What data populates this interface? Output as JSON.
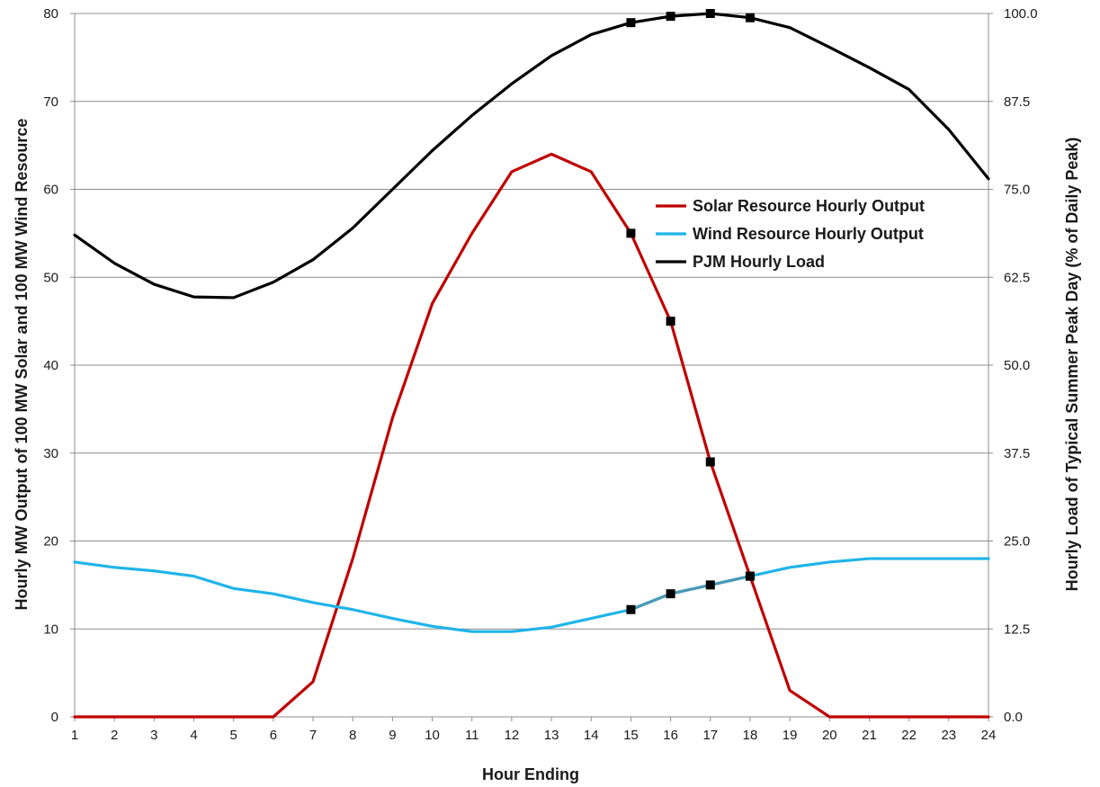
{
  "chart_data": {
    "type": "line",
    "title": "",
    "xlabel": "Hour Ending",
    "ylabel_left": "Hourly MW Output of 100 MW Solar and 100 MW Wind Resource",
    "ylabel_right": "Hourly Load of Typical Summer Peak Day (% of Daily Peak)",
    "x": [
      1,
      2,
      3,
      4,
      5,
      6,
      7,
      8,
      9,
      10,
      11,
      12,
      13,
      14,
      15,
      16,
      17,
      18,
      19,
      20,
      21,
      22,
      23,
      24
    ],
    "x_tick_labels": [
      "1",
      "2",
      "3",
      "4",
      "5",
      "6",
      "7",
      "8",
      "9",
      "10",
      "11",
      "12",
      "13",
      "14",
      "15",
      "16",
      "17",
      "18",
      "19",
      "20",
      "21",
      "22",
      "23",
      "24"
    ],
    "ylim_left": [
      0,
      80
    ],
    "y_ticks_left": [
      "0",
      "10",
      "20",
      "30",
      "40",
      "50",
      "60",
      "70",
      "80"
    ],
    "ylim_right": [
      0,
      100
    ],
    "y_ticks_right": [
      "0.0",
      "12.5",
      "25.0",
      "37.5",
      "50.0",
      "62.5",
      "75.0",
      "87.5",
      "100.0"
    ],
    "grid": true,
    "legend_position": "center-right",
    "series": [
      {
        "name": "Solar Resource Hourly Output",
        "axis": "left",
        "color": "#c00000",
        "values": [
          0,
          0,
          0,
          0,
          0,
          0,
          4,
          18,
          34,
          47,
          55,
          62,
          64,
          62,
          55,
          45,
          29,
          16,
          3,
          0,
          0,
          0,
          0,
          0
        ],
        "marked_x": [
          15,
          16,
          17,
          18
        ]
      },
      {
        "name": "Wind Resource Hourly Output",
        "axis": "left",
        "color": "#1fb4e9",
        "values": [
          17.6,
          17,
          16.6,
          16,
          14.6,
          14,
          13,
          12.2,
          11.2,
          10.3,
          9.7,
          9.7,
          10.2,
          11.2,
          12.2,
          14,
          15,
          16,
          17,
          17.6,
          18,
          18,
          18,
          18
        ],
        "marked_x": [
          15,
          16,
          17,
          18
        ],
        "highlight_color": "#4a9ab5"
      },
      {
        "name": "PJM Hourly Load",
        "axis": "right",
        "color": "#000000",
        "values": [
          68.5,
          64.5,
          61.5,
          59.7,
          59.6,
          61.8,
          65,
          69.5,
          75,
          80.5,
          85.5,
          90,
          94,
          97,
          98.7,
          99.6,
          100,
          99.4,
          98,
          95.2,
          92.3,
          89.2,
          83.5,
          76.5
        ],
        "marked_x": [
          15,
          16,
          17,
          18
        ]
      }
    ]
  }
}
